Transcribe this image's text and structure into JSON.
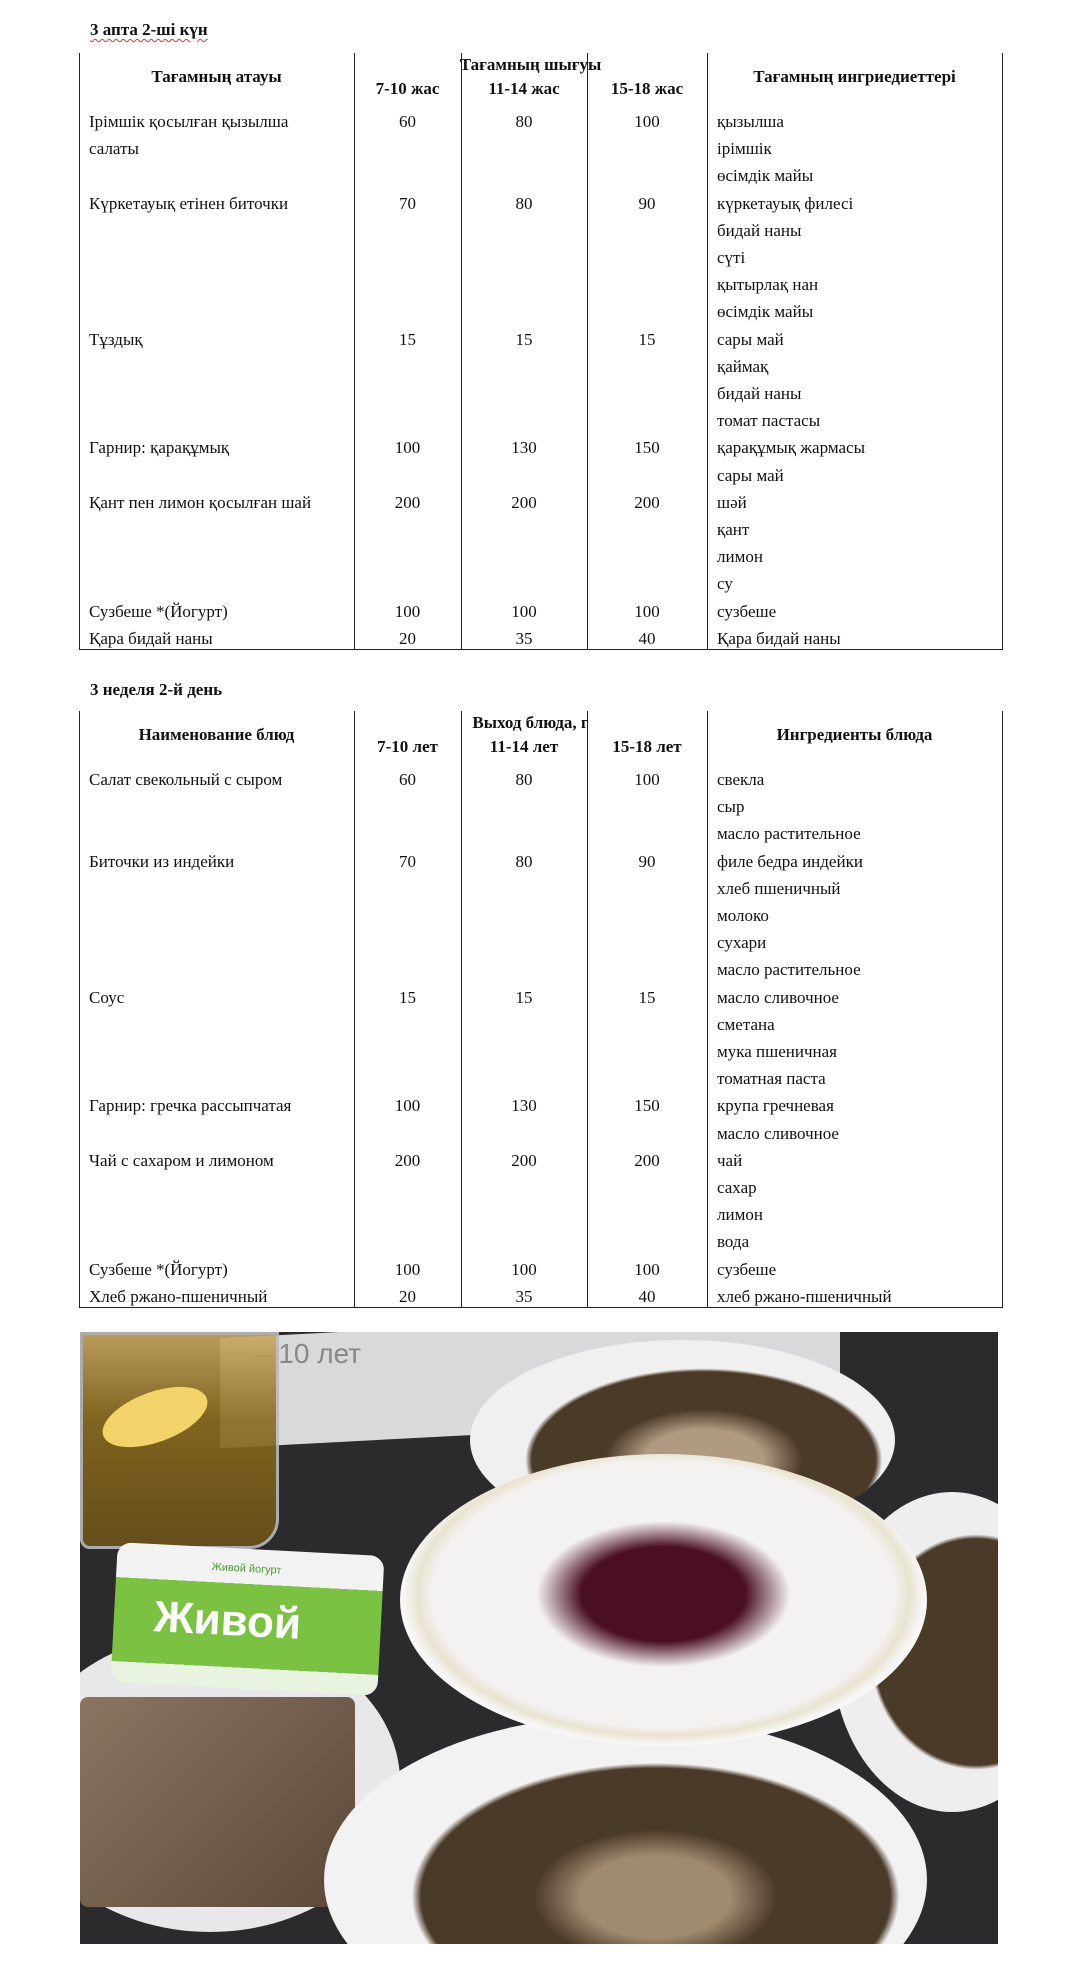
{
  "table_kz": {
    "title": "3 апта  2-ші  күн",
    "headers": {
      "name": "Тағамның атауы",
      "output": "Тағамның шығуы",
      "ages": [
        "7-10 жас",
        "11-14 жас",
        "15-18 жас"
      ],
      "ingredients": "Тағамның ингриедиеттері"
    },
    "rows": [
      {
        "name": "Ірімшік қосылған қызылша",
        "v": [
          "60",
          "80",
          "100"
        ],
        "ing": "қызылша"
      },
      {
        "name": "салаты",
        "v": [
          "",
          "",
          ""
        ],
        "ing": "ірімшік"
      },
      {
        "name": "",
        "v": [
          "",
          "",
          ""
        ],
        "ing": "өсімдік майы"
      },
      {
        "name": "Күркетауық етінен биточки",
        "v": [
          "70",
          "80",
          "90"
        ],
        "ing": "күркетауық филесі"
      },
      {
        "name": "",
        "v": [
          "",
          "",
          ""
        ],
        "ing": "бидай наны"
      },
      {
        "name": "",
        "v": [
          "",
          "",
          ""
        ],
        "ing": "сүті"
      },
      {
        "name": "",
        "v": [
          "",
          "",
          ""
        ],
        "ing": "қытырлақ нан"
      },
      {
        "name": "",
        "v": [
          "",
          "",
          ""
        ],
        "ing": "өсімдік майы"
      },
      {
        "name": "Тұздық",
        "v": [
          "15",
          "15",
          "15"
        ],
        "ing": "сары май"
      },
      {
        "name": "",
        "v": [
          "",
          "",
          ""
        ],
        "ing": "қаймақ"
      },
      {
        "name": "",
        "v": [
          "",
          "",
          ""
        ],
        "ing": "бидай наны"
      },
      {
        "name": "",
        "v": [
          "",
          "",
          ""
        ],
        "ing": "томат пастасы"
      },
      {
        "name": "Гарнир: қарақұмық",
        "v": [
          "100",
          "130",
          "150"
        ],
        "ing": "қарақұмық жармасы"
      },
      {
        "name": "",
        "v": [
          "",
          "",
          ""
        ],
        "ing": "сары май"
      },
      {
        "name": "Қант пен лимон қосылған шай",
        "v": [
          "200",
          "200",
          "200"
        ],
        "ing": "шәй"
      },
      {
        "name": "",
        "v": [
          "",
          "",
          ""
        ],
        "ing": "қант"
      },
      {
        "name": "",
        "v": [
          "",
          "",
          ""
        ],
        "ing": "лимон"
      },
      {
        "name": "",
        "v": [
          "",
          "",
          ""
        ],
        "ing": "су"
      },
      {
        "name": "Сузбеше *(Йогурт)",
        "v": [
          "100",
          "100",
          "100"
        ],
        "ing": "сузбеше"
      },
      {
        "name": "Қара бидай наны",
        "v": [
          "20",
          "35",
          "40"
        ],
        "ing": "Қара бидай наны"
      }
    ]
  },
  "table_ru": {
    "title": "3 неделя 2-й день",
    "headers": {
      "name": "Наименование блюд",
      "output": "Выход блюда, г",
      "ages": [
        "7-10 лет",
        "11-14 лет",
        "15-18 лет"
      ],
      "ingredients": "Ингредиенты блюда"
    },
    "rows": [
      {
        "name": "Салат свекольный с сыром",
        "v": [
          "60",
          "80",
          "100"
        ],
        "ing": "свекла"
      },
      {
        "name": "",
        "v": [
          "",
          "",
          ""
        ],
        "ing": "сыр"
      },
      {
        "name": "",
        "v": [
          "",
          "",
          ""
        ],
        "ing": "масло растительное"
      },
      {
        "name": "Биточки из индейки",
        "v": [
          "70",
          "80",
          "90"
        ],
        "ing": "филе бедра индейки"
      },
      {
        "name": "",
        "v": [
          "",
          "",
          ""
        ],
        "ing": "хлеб пшеничный"
      },
      {
        "name": "",
        "v": [
          "",
          "",
          ""
        ],
        "ing": "молоко"
      },
      {
        "name": "",
        "v": [
          "",
          "",
          ""
        ],
        "ing": "сухари"
      },
      {
        "name": "",
        "v": [
          "",
          "",
          ""
        ],
        "ing": "масло растительное"
      },
      {
        "name": "Соус",
        "v": [
          "15",
          "15",
          "15"
        ],
        "ing": "масло сливочное"
      },
      {
        "name": "",
        "v": [
          "",
          "",
          ""
        ],
        "ing": "сметана"
      },
      {
        "name": "",
        "v": [
          "",
          "",
          ""
        ],
        "ing": "мука пшеничная"
      },
      {
        "name": "",
        "v": [
          "",
          "",
          ""
        ],
        "ing": "томатная паста"
      },
      {
        "name": "Гарнир: гречка рассыпчатая",
        "v": [
          "100",
          "130",
          "150"
        ],
        "ing": "крупа гречневая"
      },
      {
        "name": "",
        "v": [
          "",
          "",
          ""
        ],
        "ing": "масло сливочное"
      },
      {
        "name": "Чай с сахаром и лимоном",
        "v": [
          "200",
          "200",
          "200"
        ],
        "ing": "чай"
      },
      {
        "name": "",
        "v": [
          "",
          "",
          ""
        ],
        "ing": "сахар"
      },
      {
        "name": "",
        "v": [
          "",
          "",
          ""
        ],
        "ing": "лимон"
      },
      {
        "name": "",
        "v": [
          "",
          "",
          ""
        ],
        "ing": "вода"
      },
      {
        "name": "Сузбеше *(Йогурт)",
        "v": [
          "100",
          "100",
          "100"
        ],
        "ing": "сузбеше"
      },
      {
        "name": "Хлеб ржано-пшеничный",
        "v": [
          "20",
          "35",
          "40"
        ],
        "ing": "хлеб ржано-пшеничный"
      }
    ]
  },
  "photo": {
    "sign_text": "– 10 лет",
    "yogurt_logo": "Живой",
    "yogurt_subtitle": "Живой йогурт",
    "colors": {
      "table": "#2b2b2e",
      "tea": "#8a6a1e",
      "yogurt_green": "#7cc242",
      "beet": "#4a0f22",
      "buckwheat": "#4a3a28"
    }
  }
}
